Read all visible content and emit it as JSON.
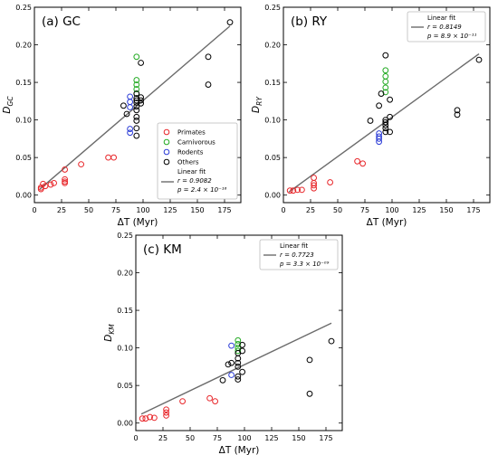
{
  "chart_data": [
    {
      "type": "scatter",
      "title": "(a) GC",
      "xlabel": "ΔT (Myr)",
      "ylabel": "D_GC",
      "xlim": [
        0,
        190
      ],
      "ylim": [
        -0.01,
        0.25
      ],
      "xticks": [
        "0",
        "25",
        "50",
        "75",
        "100",
        "125",
        "150",
        "175"
      ],
      "yticks": [
        "0.00",
        "0.05",
        "0.10",
        "0.15",
        "0.20",
        "0.25"
      ],
      "legend_position": "lower-right",
      "series": [
        {
          "name": "Primates",
          "color": "#e8262a",
          "points": [
            [
              6,
              0.01
            ],
            [
              6,
              0.008
            ],
            [
              8,
              0.015
            ],
            [
              10,
              0.012
            ],
            [
              15,
              0.014
            ],
            [
              18,
              0.016
            ],
            [
              28,
              0.021
            ],
            [
              28,
              0.018
            ],
            [
              28,
              0.034
            ],
            [
              28,
              0.016
            ],
            [
              43,
              0.041
            ],
            [
              68,
              0.05
            ],
            [
              73,
              0.05
            ]
          ]
        },
        {
          "name": "Carnivorous",
          "color": "#22aa22",
          "points": [
            [
              94,
              0.184
            ],
            [
              94,
              0.153
            ],
            [
              94,
              0.147
            ],
            [
              94,
              0.141
            ],
            [
              94,
              0.135
            ]
          ]
        },
        {
          "name": "Rodents",
          "color": "#2a3bd6",
          "points": [
            [
              88,
              0.131
            ],
            [
              88,
              0.124
            ],
            [
              88,
              0.117
            ],
            [
              88,
              0.088
            ],
            [
              88,
              0.083
            ]
          ]
        },
        {
          "name": "Others",
          "color": "#000000",
          "points": [
            [
              98,
              0.176
            ],
            [
              94,
              0.135
            ],
            [
              94,
              0.129
            ],
            [
              94,
              0.126
            ],
            [
              94,
              0.123
            ],
            [
              94,
              0.118
            ],
            [
              94,
              0.113
            ],
            [
              94,
              0.104
            ],
            [
              94,
              0.099
            ],
            [
              94,
              0.089
            ],
            [
              94,
              0.079
            ],
            [
              98,
              0.13
            ],
            [
              98,
              0.122
            ],
            [
              98,
              0.126
            ],
            [
              82,
              0.119
            ],
            [
              85,
              0.108
            ],
            [
              160,
              0.184
            ],
            [
              160,
              0.147
            ],
            [
              180,
              0.23
            ]
          ]
        }
      ],
      "fit": {
        "name": "Linear fit",
        "r": "r = 0.9082",
        "p": "p = 2.4 × 10⁻¹⁶",
        "x": [
          5,
          180
        ],
        "y": [
          0.008,
          0.225
        ]
      }
    },
    {
      "type": "scatter",
      "title": "(b) RY",
      "xlabel": "ΔT (Myr)",
      "ylabel": "D_RY",
      "xlim": [
        0,
        190
      ],
      "ylim": [
        -0.01,
        0.25
      ],
      "xticks": [
        "0",
        "25",
        "50",
        "75",
        "100",
        "125",
        "150",
        "175"
      ],
      "yticks": [
        "0.00",
        "0.05",
        "0.10",
        "0.15",
        "0.20",
        "0.25"
      ],
      "legend_position": "top-right",
      "series": [
        {
          "name": "Primates",
          "color": "#e8262a",
          "points": [
            [
              6,
              0.006
            ],
            [
              9,
              0.006
            ],
            [
              13,
              0.007
            ],
            [
              17,
              0.007
            ],
            [
              28,
              0.023
            ],
            [
              28,
              0.016
            ],
            [
              28,
              0.013
            ],
            [
              28,
              0.009
            ],
            [
              43,
              0.017
            ],
            [
              68,
              0.045
            ],
            [
              73,
              0.042
            ]
          ]
        },
        {
          "name": "Carnivorous",
          "color": "#22aa22",
          "points": [
            [
              94,
              0.166
            ],
            [
              94,
              0.158
            ],
            [
              94,
              0.151
            ],
            [
              94,
              0.143
            ],
            [
              94,
              0.137
            ]
          ]
        },
        {
          "name": "Rodents",
          "color": "#2a3bd6",
          "points": [
            [
              88,
              0.082
            ],
            [
              88,
              0.078
            ],
            [
              88,
              0.075
            ],
            [
              88,
              0.071
            ]
          ]
        },
        {
          "name": "Others",
          "color": "#000000",
          "points": [
            [
              94,
              0.186
            ],
            [
              94,
              0.1
            ],
            [
              94,
              0.097
            ],
            [
              94,
              0.093
            ],
            [
              94,
              0.089
            ],
            [
              94,
              0.084
            ],
            [
              98,
              0.127
            ],
            [
              98,
              0.104
            ],
            [
              98,
              0.084
            ],
            [
              90,
              0.135
            ],
            [
              80,
              0.099
            ],
            [
              88,
              0.119
            ],
            [
              160,
              0.113
            ],
            [
              160,
              0.107
            ],
            [
              180,
              0.18
            ]
          ]
        }
      ],
      "fit": {
        "name": "Linear fit",
        "r": "r = 0.8149",
        "p": "p = 8.9 × 10⁻¹¹",
        "x": [
          5,
          180
        ],
        "y": [
          0.004,
          0.188
        ]
      }
    },
    {
      "type": "scatter",
      "title": "(c) KM",
      "xlabel": "ΔT (Myr)",
      "ylabel": "D_KM",
      "xlim": [
        0,
        190
      ],
      "ylim": [
        -0.01,
        0.25
      ],
      "xticks": [
        "0",
        "25",
        "50",
        "75",
        "100",
        "125",
        "150",
        "175"
      ],
      "yticks": [
        "0.00",
        "0.05",
        "0.10",
        "0.15",
        "0.20",
        "0.25"
      ],
      "legend_position": "top-right",
      "series": [
        {
          "name": "Primates",
          "color": "#e8262a",
          "points": [
            [
              6,
              0.006
            ],
            [
              9,
              0.006
            ],
            [
              13,
              0.008
            ],
            [
              17,
              0.007
            ],
            [
              28,
              0.018
            ],
            [
              28,
              0.014
            ],
            [
              28,
              0.01
            ],
            [
              43,
              0.029
            ],
            [
              68,
              0.033
            ],
            [
              73,
              0.029
            ]
          ]
        },
        {
          "name": "Carnivorous",
          "color": "#22aa22",
          "points": [
            [
              94,
              0.11
            ],
            [
              94,
              0.105
            ],
            [
              94,
              0.1
            ],
            [
              94,
              0.096
            ]
          ]
        },
        {
          "name": "Rodents",
          "color": "#2a3bd6",
          "points": [
            [
              88,
              0.103
            ],
            [
              88,
              0.064
            ]
          ]
        },
        {
          "name": "Others",
          "color": "#000000",
          "points": [
            [
              98,
              0.104
            ],
            [
              98,
              0.096
            ],
            [
              98,
              0.068
            ],
            [
              94,
              0.093
            ],
            [
              94,
              0.086
            ],
            [
              94,
              0.08
            ],
            [
              94,
              0.075
            ],
            [
              94,
              0.062
            ],
            [
              94,
              0.058
            ],
            [
              88,
              0.08
            ],
            [
              85,
              0.078
            ],
            [
              80,
              0.057
            ],
            [
              160,
              0.084
            ],
            [
              160,
              0.039
            ],
            [
              180,
              0.109
            ]
          ]
        }
      ],
      "fit": {
        "name": "Linear fit",
        "r": "r = 0.7723",
        "p": "p = 3.3 × 10⁻⁰⁹",
        "x": [
          5,
          180
        ],
        "y": [
          0.012,
          0.133
        ]
      }
    }
  ]
}
